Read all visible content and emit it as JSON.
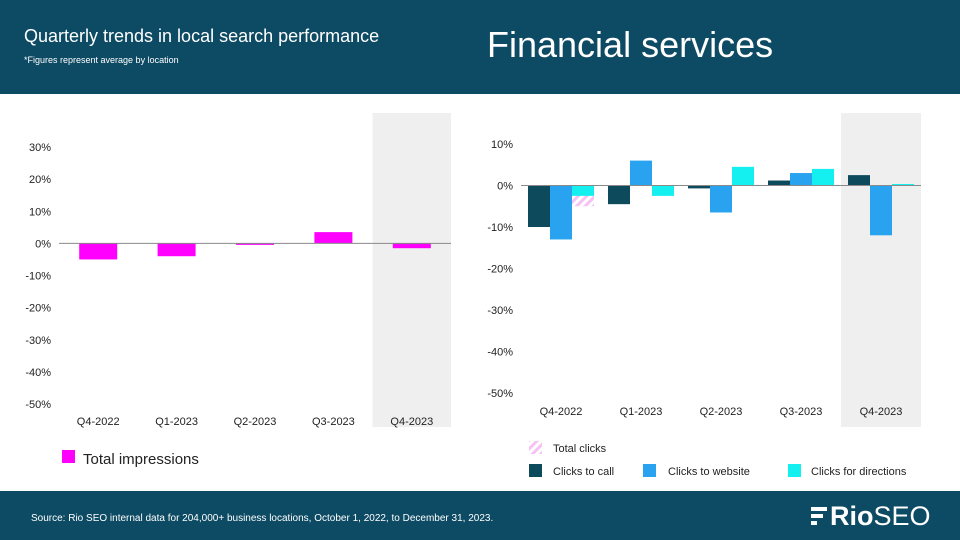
{
  "header": {
    "title": "Quarterly trends in local search performance",
    "note": "*Figures represent average by location",
    "section": "Financial services"
  },
  "footer": {
    "source": "Source: Rio SEO internal data for 204,000+ business locations, October 1, 2022, to December 31, 2023.",
    "logo_bold": "Rio",
    "logo_light": "SEO"
  },
  "colors": {
    "header_bg": "#0d4a63",
    "impressions": "#ff00ff",
    "total_clicks": "#f4c2f4",
    "clicks_to_call": "#0d4a5c",
    "clicks_to_website": "#29a3f0",
    "clicks_for_directions": "#14f0f0",
    "highlight": "#efefef"
  },
  "chart_data": [
    {
      "type": "bar",
      "categories": [
        "Q4-2022",
        "Q1-2023",
        "Q2-2023",
        "Q3-2023",
        "Q4-2023"
      ],
      "series": [
        {
          "name": "Total impressions",
          "values": [
            -5.0,
            -4.0,
            -0.3,
            3.5,
            -1.5
          ]
        }
      ],
      "ylim": [
        -50,
        30
      ],
      "yticks": [
        "30%",
        "20%",
        "10%",
        "0%",
        "-10%",
        "-20%",
        "-30%",
        "-40%",
        "-50%"
      ],
      "ytick_values": [
        30,
        20,
        10,
        0,
        -10,
        -20,
        -30,
        -40,
        -50
      ],
      "highlight_category": "Q4-2023",
      "legend": "bottom-left"
    },
    {
      "type": "bar",
      "categories": [
        "Q4-2022",
        "Q1-2023",
        "Q2-2023",
        "Q3-2023",
        "Q4-2023"
      ],
      "series": [
        {
          "name": "Total clicks",
          "values": [
            -5.0,
            -2.5,
            2.5,
            3.0,
            0
          ]
        },
        {
          "name": "Clicks to call",
          "values": [
            -10.0,
            -4.5,
            -0.7,
            1.2,
            2.5
          ]
        },
        {
          "name": "Clicks to website",
          "values": [
            -13.0,
            6.0,
            -6.5,
            3.0,
            -12.0
          ]
        },
        {
          "name": "Clicks for directions",
          "values": [
            -2.5,
            -2.5,
            4.5,
            4.0,
            0.3
          ]
        }
      ],
      "ylim": [
        -50,
        10
      ],
      "yticks": [
        "10%",
        "0%",
        "-10%",
        "-20%",
        "-30%",
        "-40%",
        "-50%"
      ],
      "ytick_values": [
        10,
        0,
        -10,
        -20,
        -30,
        -40,
        -50
      ],
      "highlight_category": "Q4-2023",
      "legend": "bottom"
    }
  ]
}
